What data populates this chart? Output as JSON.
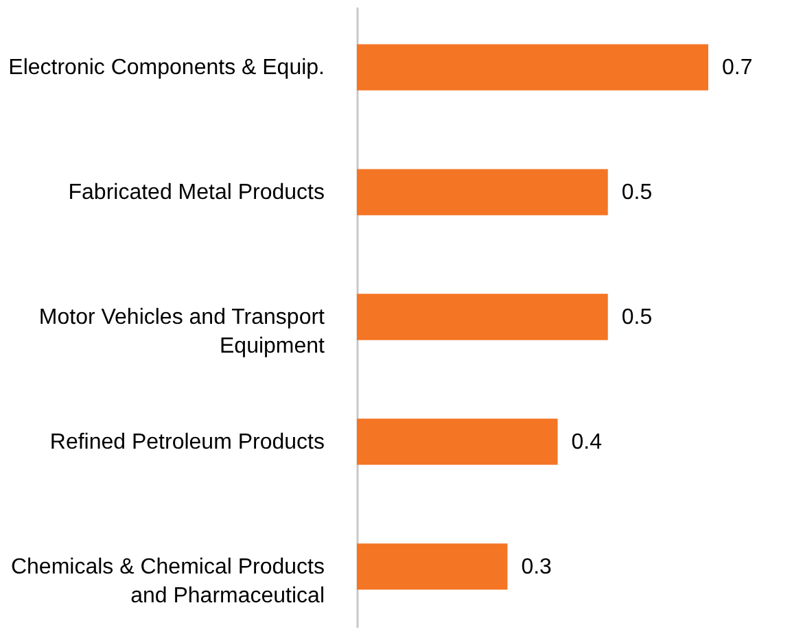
{
  "chart_data": {
    "type": "bar",
    "orientation": "horizontal",
    "categories": [
      "Electronic Components & Equip.",
      "Fabricated Metal Products",
      "Motor Vehicles and Transport Equipment",
      "Refined Petroleum Products",
      "Chemicals & Chemical Products and Pharmaceutical"
    ],
    "values": [
      0.7,
      0.5,
      0.5,
      0.4,
      0.3
    ],
    "color": "#f47524",
    "data_labels": true,
    "tick_labels": "y"
  }
}
